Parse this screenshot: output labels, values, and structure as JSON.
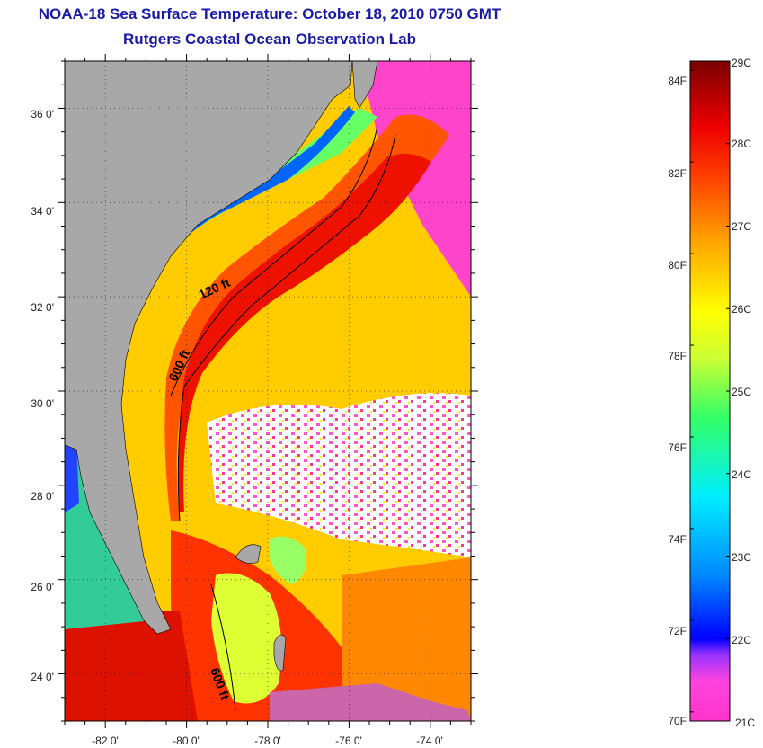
{
  "header": {
    "title_line1": "NOAA-18 Sea Surface Temperature:  October 18, 2010 0750 GMT",
    "title_line2": "Rutgers Coastal Ocean Observation Lab"
  },
  "map": {
    "lon_range": [
      -83,
      -73
    ],
    "lat_range": [
      23,
      37
    ],
    "x_tick_labels": [
      "-82 0'",
      "-80 0'",
      "-78 0'",
      "-76 0'",
      "-74 0'"
    ],
    "x_tick_values": [
      -82,
      -80,
      -78,
      -76,
      -74
    ],
    "y_tick_labels": [
      "36 0'",
      "34 0'",
      "32 0'",
      "30 0'",
      "28 0'",
      "26 0'",
      "24 0'"
    ],
    "y_tick_values": [
      36,
      34,
      32,
      30,
      28,
      26,
      24
    ],
    "contour_labels": [
      "120 ft",
      "600 ft",
      "600 ft"
    ],
    "land_color": "#a8a8a8",
    "cloud_color": "#ffffff"
  },
  "colorbar": {
    "fahrenheit_labels": [
      "84F",
      "82F",
      "80F",
      "78F",
      "76F",
      "74F",
      "72F",
      "70F"
    ],
    "fahrenheit_values": [
      84,
      82,
      80,
      78,
      76,
      74,
      72,
      70
    ],
    "celsius_labels": [
      "29C",
      "28C",
      "27C",
      "26C",
      "25C",
      "24C",
      "23C",
      "22C",
      "21C"
    ],
    "celsius_values": [
      29,
      28,
      27,
      26,
      25,
      24,
      23,
      22,
      21
    ],
    "range_c": [
      21,
      29
    ],
    "colors_bottom_to_top": [
      "#ff33cc",
      "#9933ff",
      "#0000ff",
      "#0088ff",
      "#00eeff",
      "#33ff66",
      "#ccff33",
      "#ffff00",
      "#ffaa00",
      "#ff5500",
      "#ee0000",
      "#880000"
    ]
  }
}
